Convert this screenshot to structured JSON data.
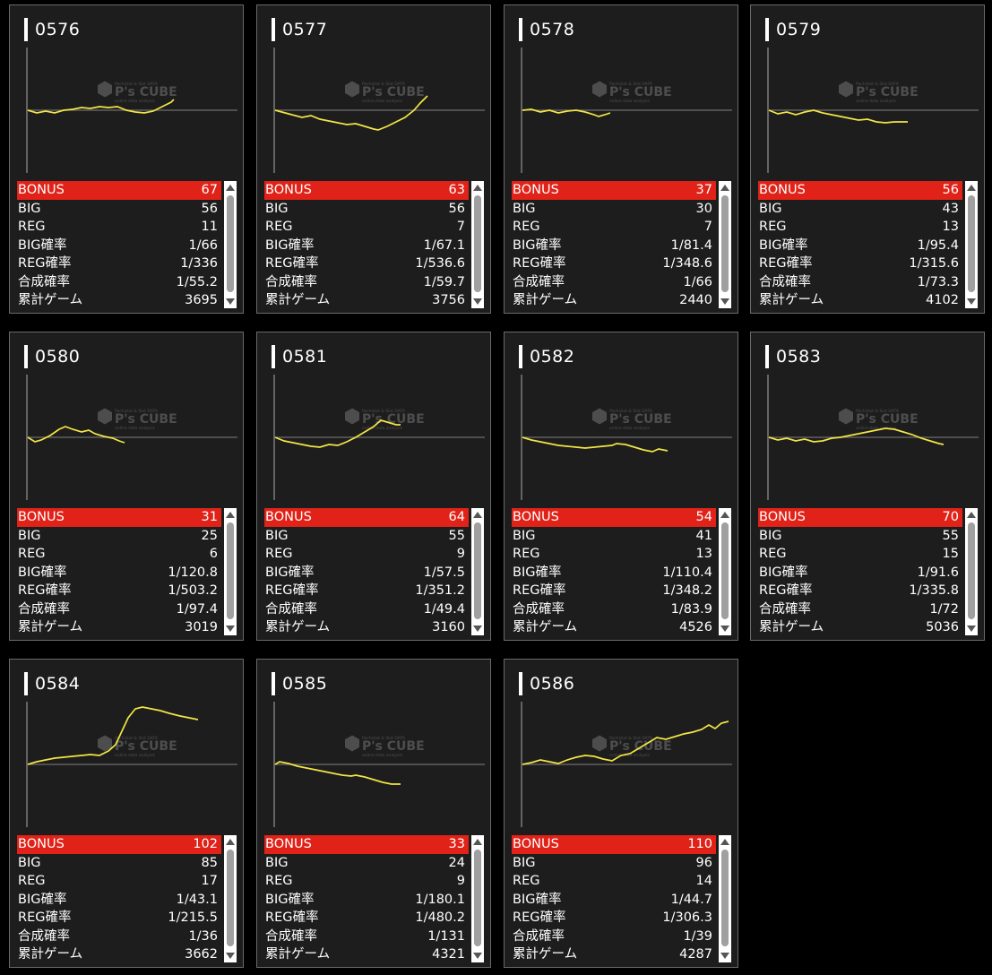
{
  "labels": {
    "bonus": "BONUS",
    "big": "BIG",
    "reg": "REG",
    "big_rate": "BIG確率",
    "reg_rate": "REG確率",
    "total_rate": "合成確率",
    "games": "累計ゲーム"
  },
  "watermark": {
    "brand": "P's CUBE",
    "top_text": "Pachislot & Slot DATA",
    "bottom_text": "online data analysis"
  },
  "colors": {
    "bonus_bar": "#e02218",
    "graph_line": "#f2e646",
    "panel_bg": "#1d1d1d"
  },
  "machines": [
    {
      "id": "0576",
      "bonus": "67",
      "big": "56",
      "reg": "11",
      "big_rate": "1/66",
      "reg_rate": "1/336",
      "total_rate": "1/55.2",
      "games": "3695"
    },
    {
      "id": "0577",
      "bonus": "63",
      "big": "56",
      "reg": "7",
      "big_rate": "1/67.1",
      "reg_rate": "1/536.6",
      "total_rate": "1/59.7",
      "games": "3756"
    },
    {
      "id": "0578",
      "bonus": "37",
      "big": "30",
      "reg": "7",
      "big_rate": "1/81.4",
      "reg_rate": "1/348.6",
      "total_rate": "1/66",
      "games": "2440"
    },
    {
      "id": "0579",
      "bonus": "56",
      "big": "43",
      "reg": "13",
      "big_rate": "1/95.4",
      "reg_rate": "1/315.6",
      "total_rate": "1/73.3",
      "games": "4102"
    },
    {
      "id": "0580",
      "bonus": "31",
      "big": "25",
      "reg": "6",
      "big_rate": "1/120.8",
      "reg_rate": "1/503.2",
      "total_rate": "1/97.4",
      "games": "3019"
    },
    {
      "id": "0581",
      "bonus": "64",
      "big": "55",
      "reg": "9",
      "big_rate": "1/57.5",
      "reg_rate": "1/351.2",
      "total_rate": "1/49.4",
      "games": "3160"
    },
    {
      "id": "0582",
      "bonus": "54",
      "big": "41",
      "reg": "13",
      "big_rate": "1/110.4",
      "reg_rate": "1/348.2",
      "total_rate": "1/83.9",
      "games": "4526"
    },
    {
      "id": "0583",
      "bonus": "70",
      "big": "55",
      "reg": "15",
      "big_rate": "1/91.6",
      "reg_rate": "1/335.8",
      "total_rate": "1/72",
      "games": "5036"
    },
    {
      "id": "0584",
      "bonus": "102",
      "big": "85",
      "reg": "17",
      "big_rate": "1/43.1",
      "reg_rate": "1/215.5",
      "total_rate": "1/36",
      "games": "3662"
    },
    {
      "id": "0585",
      "bonus": "33",
      "big": "24",
      "reg": "9",
      "big_rate": "1/180.1",
      "reg_rate": "1/480.2",
      "total_rate": "1/131",
      "games": "4321"
    },
    {
      "id": "0586",
      "bonus": "110",
      "big": "96",
      "reg": "14",
      "big_rate": "1/44.7",
      "reg_rate": "1/306.3",
      "total_rate": "1/39",
      "games": "4287"
    }
  ]
}
